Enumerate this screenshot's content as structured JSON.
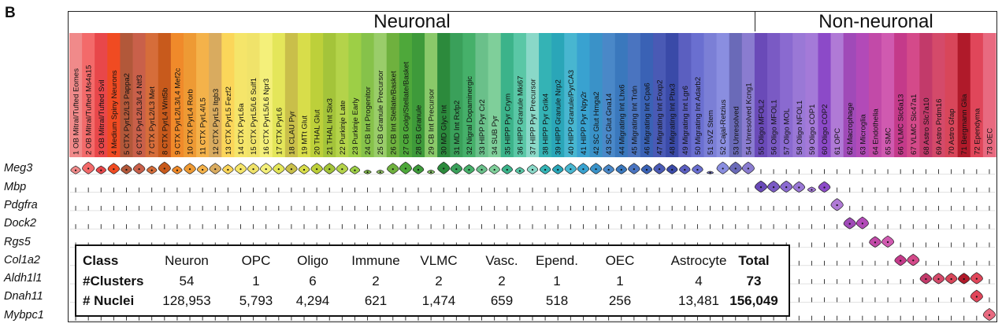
{
  "panel_label": "B",
  "chart_data": {
    "type": "violin",
    "groups": [
      {
        "label": "Neuronal",
        "clusters": "1-54"
      },
      {
        "label": "Non-neuronal",
        "clusters": "55-73"
      }
    ],
    "clusters": [
      {
        "label": "1 OB Mitral/Tufted Eomes",
        "color": "#f08a8a"
      },
      {
        "label": "2 OB Mitral/Tufted Ms4a15",
        "color": "#f36a6a"
      },
      {
        "label": "3 OB Mitral/Tufted Svil",
        "color": "#e8474a"
      },
      {
        "label": "4 Medium Spiny Neurons",
        "color": "#f04b22"
      },
      {
        "label": "5 CTX PyrL2/L3 Pappa2",
        "color": "#b2583a"
      },
      {
        "label": "6 CTX PyrL2/L3/L4 Ntf3",
        "color": "#c9604a"
      },
      {
        "label": "7 CTX PyrL2/L3 Met",
        "color": "#d66d3a"
      },
      {
        "label": "8 CTX PyrL4 Wnt5b",
        "color": "#c85a1c"
      },
      {
        "label": "9 CTX PyrL2/L3/L4 Mef2c",
        "color": "#f08a2a"
      },
      {
        "label": "10 CTX PyrL4 Rorb",
        "color": "#ee9a34"
      },
      {
        "label": "11 CTX PyrL4/L5",
        "color": "#f4b24a"
      },
      {
        "label": "12 CTX PyrL5 Itgb3",
        "color": "#d9ab5f"
      },
      {
        "label": "13 CTX PyrL5 Fezf2",
        "color": "#fbd65a"
      },
      {
        "label": "14 CTX PyrL6a",
        "color": "#f5e56a"
      },
      {
        "label": "15 CTX PyrL5/L6 Sulf1",
        "color": "#f0e36a"
      },
      {
        "label": "16 CTX PyrL5/L6 Npr3",
        "color": "#f4f07a"
      },
      {
        "label": "17 CTX PyrL6",
        "color": "#e4e65a"
      },
      {
        "label": "18 CLAU Pyr",
        "color": "#c9bf4a"
      },
      {
        "label": "19 MTt Glut",
        "color": "#d8dd4a"
      },
      {
        "label": "20 THAL Glut",
        "color": "#bdd03a"
      },
      {
        "label": "21 THAL Int Six3",
        "color": "#a4c43a"
      },
      {
        "label": "22 Purkinje Late",
        "color": "#b4d34a"
      },
      {
        "label": "23 Purkinje Early",
        "color": "#9dcf46"
      },
      {
        "label": "24 CB Int Progenitor",
        "color": "#86c24a"
      },
      {
        "label": "25 CB Granule Precursor",
        "color": "#9acd6a"
      },
      {
        "label": "26 CB Int Stellate/Basket",
        "color": "#6fb13e"
      },
      {
        "label": "27 CB Golgi/Stellate/Basket",
        "color": "#4ea83a"
      },
      {
        "label": "28 CB Granule",
        "color": "#3e9a3a"
      },
      {
        "label": "29 CB Int Precursor",
        "color": "#8ac96a"
      },
      {
        "label": "30 MD Glyc Int",
        "color": "#2c8a3c"
      },
      {
        "label": "31 MD Int Rxfp2",
        "color": "#3aa05a"
      },
      {
        "label": "32 Nigral Dopaminergic",
        "color": "#46b06a"
      },
      {
        "label": "33 HIPP Pyr Cr2",
        "color": "#6ac08a"
      },
      {
        "label": "34 SUB Pyr",
        "color": "#7fcf9a"
      },
      {
        "label": "35 HIPP Pyr Crym",
        "color": "#3cb38a"
      },
      {
        "label": "36 HIPP Granule Mki67",
        "color": "#5ac7a6"
      },
      {
        "label": "37 HIPP Pyr Precursor",
        "color": "#8ad8c8"
      },
      {
        "label": "38 HIPP Pyr Grik4",
        "color": "#34b3b5"
      },
      {
        "label": "39 HIPP Granule Nrp2",
        "color": "#2aa6b8"
      },
      {
        "label": "40 HIPP Granule/PyrCA3",
        "color": "#48b6d0"
      },
      {
        "label": "41 HIPP Pyr Npy2r",
        "color": "#39a2d0"
      },
      {
        "label": "42 SC Glut Hmga2",
        "color": "#3a92c8"
      },
      {
        "label": "43 SC Glut Gna14",
        "color": "#4a88c8"
      },
      {
        "label": "44 Migrating Int Lhx6",
        "color": "#3a78bd"
      },
      {
        "label": "45 Migrating Int Trdn",
        "color": "#4a74c0"
      },
      {
        "label": "46 Migrating Int Cpa6",
        "color": "#3a62b5"
      },
      {
        "label": "47 Migrating Int Foxp2",
        "color": "#4a5ab5"
      },
      {
        "label": "48 Migrating Int Pbx3",
        "color": "#3a4aa8"
      },
      {
        "label": "49 Migrating Int Lgr6",
        "color": "#5b5fc0"
      },
      {
        "label": "50 Migrating Int Adarb2",
        "color": "#6a6fd0"
      },
      {
        "label": "51 SVZ Stem",
        "color": "#7b7fd6"
      },
      {
        "label": "52 Cajal-Retzius",
        "color": "#8a8ee0"
      },
      {
        "label": "53 Unresolved",
        "color": "#6a6ab8"
      },
      {
        "label": "54 Unresolved Kcng1",
        "color": "#8a7cd0"
      },
      {
        "label": "55 Oligo MFOL2",
        "color": "#6a4ab8"
      },
      {
        "label": "56 Oligo MFOL1",
        "color": "#7a5ac4"
      },
      {
        "label": "57 Oligo MOL",
        "color": "#8a6ad0"
      },
      {
        "label": "58 Oligo NFOL1",
        "color": "#9a78d6"
      },
      {
        "label": "59 Oligo COP1",
        "color": "#a47ad8"
      },
      {
        "label": "60 Oligo COP2",
        "color": "#8c4ac8"
      },
      {
        "label": "61 OPC",
        "color": "#b07ad6"
      },
      {
        "label": "62 Macrophage",
        "color": "#a04ab8"
      },
      {
        "label": "63 Microglia",
        "color": "#b24ab8"
      },
      {
        "label": "64 Endothelia",
        "color": "#c24aa8"
      },
      {
        "label": "65 SMC",
        "color": "#d05ab0"
      },
      {
        "label": "66 VLMC Slc6a13",
        "color": "#c43a8a"
      },
      {
        "label": "67 VLMC Slc47a1",
        "color": "#d44a8a"
      },
      {
        "label": "68 Astro Slc7a10",
        "color": "#c23a6a"
      },
      {
        "label": "69 Astro Prdm16",
        "color": "#d44a6a"
      },
      {
        "label": "70 Astro Gfap",
        "color": "#d8465a"
      },
      {
        "label": "71 Bergmann Glia",
        "color": "#b01a2a"
      },
      {
        "label": "72 Ependyma",
        "color": "#e0465a"
      },
      {
        "label": "73 OEC",
        "color": "#e86a80"
      }
    ],
    "genes": [
      {
        "name": "Meg3",
        "level": [
          0.6,
          0.9,
          0.6,
          0.8,
          0.7,
          0.8,
          0.6,
          0.9,
          0.6,
          0.8,
          0.7,
          0.8,
          0.7,
          0.8,
          0.8,
          0.8,
          0.8,
          0.8,
          0.7,
          0.8,
          0.8,
          0.8,
          0.6,
          0.3,
          0.3,
          0.8,
          0.9,
          0.7,
          0.3,
          0.9,
          0.8,
          0.7,
          0.7,
          0.7,
          0.7,
          0.5,
          0.7,
          0.7,
          0.7,
          0.8,
          0.8,
          0.8,
          0.7,
          0.7,
          0.8,
          0.7,
          0.8,
          0.7,
          0.7,
          0.7,
          0.2,
          0.9,
          0.9,
          0.9,
          0.1,
          0.1,
          0.1,
          0.1,
          0.1,
          0.1,
          0.1,
          0.1,
          0.1,
          0.1,
          0.1,
          0.1,
          0.1,
          0.1,
          0.1,
          0.1,
          0.1,
          0.1,
          0.1
        ]
      },
      {
        "name": "Mbp",
        "level": [
          0.05,
          0.05,
          0.05,
          0.05,
          0.05,
          0.05,
          0.05,
          0.05,
          0.05,
          0.05,
          0.05,
          0.05,
          0.05,
          0.05,
          0.05,
          0.05,
          0.05,
          0.05,
          0.05,
          0.05,
          0.05,
          0.05,
          0.05,
          0.05,
          0.05,
          0.05,
          0.05,
          0.05,
          0.05,
          0.05,
          0.05,
          0.05,
          0.05,
          0.05,
          0.05,
          0.05,
          0.05,
          0.05,
          0.05,
          0.05,
          0.05,
          0.05,
          0.05,
          0.05,
          0.05,
          0.05,
          0.05,
          0.05,
          0.05,
          0.05,
          0.05,
          0.05,
          0.05,
          0.05,
          0.85,
          0.85,
          0.85,
          0.8,
          0.4,
          0.8,
          0.1,
          0.05,
          0.05,
          0.05,
          0.05,
          0.05,
          0.05,
          0.05,
          0.05,
          0.05,
          0.05,
          0.05,
          0.05
        ]
      },
      {
        "name": "Pdgfra",
        "level": [
          0.05,
          0.05,
          0.05,
          0.05,
          0.05,
          0.05,
          0.05,
          0.05,
          0.05,
          0.05,
          0.05,
          0.05,
          0.05,
          0.05,
          0.05,
          0.05,
          0.05,
          0.05,
          0.05,
          0.05,
          0.05,
          0.05,
          0.05,
          0.05,
          0.05,
          0.05,
          0.05,
          0.05,
          0.05,
          0.05,
          0.05,
          0.05,
          0.05,
          0.05,
          0.05,
          0.05,
          0.05,
          0.05,
          0.05,
          0.05,
          0.05,
          0.05,
          0.05,
          0.05,
          0.05,
          0.05,
          0.05,
          0.05,
          0.05,
          0.05,
          0.05,
          0.05,
          0.05,
          0.05,
          0.05,
          0.05,
          0.05,
          0.05,
          0.05,
          0.05,
          0.9,
          0.05,
          0.05,
          0.05,
          0.05,
          0.05,
          0.05,
          0.05,
          0.05,
          0.05,
          0.05,
          0.05,
          0.05
        ]
      },
      {
        "name": "Dock2",
        "level": [
          0.05,
          0.05,
          0.05,
          0.05,
          0.05,
          0.05,
          0.05,
          0.05,
          0.05,
          0.05,
          0.05,
          0.05,
          0.05,
          0.05,
          0.05,
          0.05,
          0.05,
          0.05,
          0.05,
          0.05,
          0.05,
          0.05,
          0.05,
          0.05,
          0.05,
          0.05,
          0.05,
          0.05,
          0.05,
          0.05,
          0.05,
          0.05,
          0.05,
          0.05,
          0.05,
          0.05,
          0.05,
          0.05,
          0.05,
          0.05,
          0.05,
          0.05,
          0.05,
          0.05,
          0.05,
          0.05,
          0.05,
          0.05,
          0.05,
          0.05,
          0.05,
          0.05,
          0.05,
          0.05,
          0.05,
          0.05,
          0.05,
          0.05,
          0.05,
          0.05,
          0.05,
          0.85,
          0.9,
          0.05,
          0.05,
          0.05,
          0.05,
          0.05,
          0.05,
          0.05,
          0.05,
          0.05,
          0.05
        ]
      },
      {
        "name": "Rgs5",
        "level": [
          0.05,
          0.05,
          0.05,
          0.05,
          0.05,
          0.05,
          0.05,
          0.05,
          0.05,
          0.05,
          0.05,
          0.05,
          0.05,
          0.05,
          0.05,
          0.05,
          0.05,
          0.05,
          0.05,
          0.05,
          0.05,
          0.05,
          0.05,
          0.05,
          0.05,
          0.05,
          0.05,
          0.05,
          0.05,
          0.05,
          0.05,
          0.05,
          0.05,
          0.05,
          0.05,
          0.05,
          0.05,
          0.05,
          0.05,
          0.05,
          0.05,
          0.05,
          0.05,
          0.05,
          0.05,
          0.05,
          0.05,
          0.05,
          0.05,
          0.05,
          0.05,
          0.05,
          0.05,
          0.05,
          0.05,
          0.05,
          0.05,
          0.05,
          0.05,
          0.05,
          0.05,
          0.05,
          0.05,
          0.8,
          0.85,
          0.05,
          0.05,
          0.05,
          0.05,
          0.05,
          0.05,
          0.05,
          0.05
        ]
      },
      {
        "name": "Col1a2",
        "level": [
          0.05,
          0.05,
          0.05,
          0.05,
          0.05,
          0.05,
          0.05,
          0.05,
          0.05,
          0.05,
          0.05,
          0.05,
          0.05,
          0.05,
          0.05,
          0.05,
          0.05,
          0.05,
          0.05,
          0.05,
          0.05,
          0.05,
          0.05,
          0.05,
          0.05,
          0.05,
          0.05,
          0.05,
          0.05,
          0.05,
          0.05,
          0.05,
          0.05,
          0.05,
          0.05,
          0.05,
          0.05,
          0.05,
          0.05,
          0.05,
          0.05,
          0.05,
          0.05,
          0.05,
          0.05,
          0.05,
          0.05,
          0.05,
          0.05,
          0.05,
          0.05,
          0.05,
          0.05,
          0.05,
          0.05,
          0.05,
          0.05,
          0.05,
          0.05,
          0.05,
          0.05,
          0.05,
          0.05,
          0.05,
          0.05,
          0.8,
          0.85,
          0.05,
          0.05,
          0.05,
          0.05,
          0.05,
          0.05
        ]
      },
      {
        "name": "Aldh1l1",
        "level": [
          0.05,
          0.05,
          0.05,
          0.05,
          0.05,
          0.05,
          0.05,
          0.05,
          0.05,
          0.05,
          0.05,
          0.05,
          0.05,
          0.05,
          0.05,
          0.05,
          0.05,
          0.05,
          0.05,
          0.05,
          0.05,
          0.05,
          0.05,
          0.05,
          0.05,
          0.05,
          0.05,
          0.05,
          0.05,
          0.05,
          0.05,
          0.05,
          0.05,
          0.05,
          0.05,
          0.05,
          0.05,
          0.05,
          0.05,
          0.05,
          0.05,
          0.05,
          0.05,
          0.05,
          0.05,
          0.05,
          0.05,
          0.05,
          0.05,
          0.05,
          0.05,
          0.05,
          0.05,
          0.05,
          0.05,
          0.05,
          0.05,
          0.05,
          0.05,
          0.05,
          0.05,
          0.05,
          0.05,
          0.05,
          0.05,
          0.05,
          0.05,
          0.8,
          0.8,
          0.8,
          0.8,
          0.85,
          0.05
        ]
      },
      {
        "name": "Dnah11",
        "level": [
          0.05,
          0.05,
          0.05,
          0.05,
          0.05,
          0.05,
          0.05,
          0.05,
          0.05,
          0.05,
          0.05,
          0.05,
          0.05,
          0.05,
          0.05,
          0.05,
          0.05,
          0.05,
          0.05,
          0.05,
          0.05,
          0.05,
          0.05,
          0.05,
          0.05,
          0.05,
          0.05,
          0.05,
          0.05,
          0.05,
          0.05,
          0.05,
          0.05,
          0.05,
          0.05,
          0.05,
          0.05,
          0.05,
          0.05,
          0.05,
          0.05,
          0.05,
          0.05,
          0.05,
          0.05,
          0.05,
          0.05,
          0.05,
          0.05,
          0.05,
          0.05,
          0.05,
          0.05,
          0.05,
          0.05,
          0.05,
          0.05,
          0.05,
          0.05,
          0.05,
          0.05,
          0.05,
          0.05,
          0.05,
          0.05,
          0.05,
          0.05,
          0.05,
          0.05,
          0.05,
          0.05,
          0.9,
          0.05
        ]
      },
      {
        "name": "Mybpc1",
        "level": [
          0.05,
          0.05,
          0.05,
          0.05,
          0.05,
          0.05,
          0.05,
          0.05,
          0.05,
          0.05,
          0.05,
          0.05,
          0.05,
          0.05,
          0.05,
          0.05,
          0.05,
          0.05,
          0.05,
          0.05,
          0.05,
          0.05,
          0.05,
          0.05,
          0.05,
          0.05,
          0.05,
          0.05,
          0.05,
          0.05,
          0.05,
          0.05,
          0.05,
          0.05,
          0.05,
          0.05,
          0.05,
          0.05,
          0.05,
          0.05,
          0.05,
          0.05,
          0.05,
          0.05,
          0.05,
          0.05,
          0.05,
          0.05,
          0.05,
          0.05,
          0.05,
          0.05,
          0.05,
          0.05,
          0.05,
          0.05,
          0.05,
          0.05,
          0.05,
          0.05,
          0.05,
          0.05,
          0.05,
          0.05,
          0.05,
          0.05,
          0.05,
          0.05,
          0.05,
          0.05,
          0.05,
          0.05,
          0.9
        ]
      }
    ]
  },
  "summary_table": {
    "headers": [
      "Class",
      "Neuron",
      "OPC",
      "Oligo",
      "Immune",
      "VLMC",
      "Vasc.",
      "Epend.",
      "OEC",
      "Astrocyte",
      "Total"
    ],
    "clusters_row": [
      "#Clusters",
      "54",
      "1",
      "6",
      "2",
      "2",
      "2",
      "1",
      "1",
      "4",
      "73"
    ],
    "nuclei_row": [
      "# Nuclei",
      "128,953",
      "5,793",
      "4,294",
      "621",
      "1,474",
      "659",
      "518",
      "256",
      "13,481",
      "156,049"
    ]
  }
}
